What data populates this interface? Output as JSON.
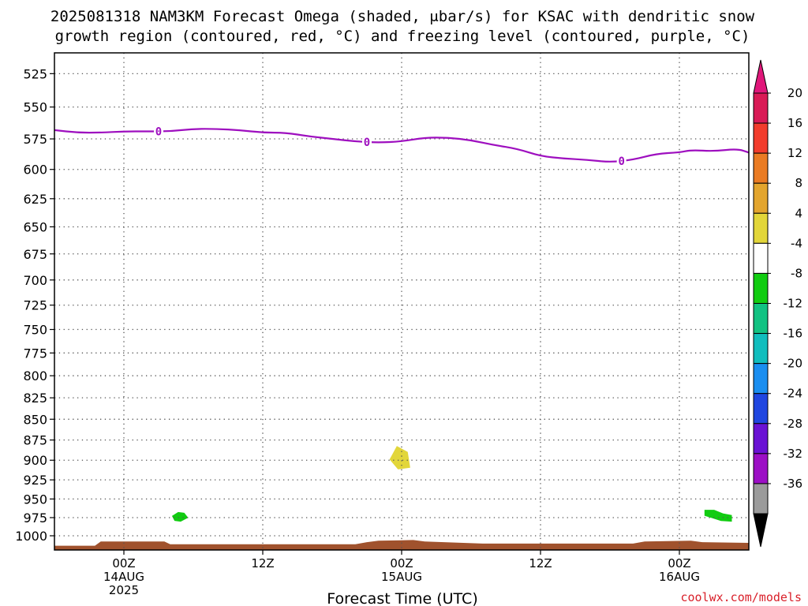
{
  "title": {
    "line1": "2025081318 NAM3KM Forecast Omega (shaded, μbar/s) for KSAC with dendritic snow",
    "line2": "growth region (contoured, red, °C) and freezing level (contoured, purple, °C)"
  },
  "credit": "coolwx.com/models",
  "chart_data": {
    "type": "time-height cross section",
    "xlabel": "Forecast Time (UTC)",
    "ylabel": "",
    "x_range_hours": [
      -6,
      54
    ],
    "y_range_hpa": [
      510,
      1020
    ],
    "y_scale": "pressure (log)",
    "grid": true,
    "y_ticks": [
      525,
      550,
      575,
      600,
      625,
      650,
      675,
      700,
      725,
      750,
      775,
      800,
      825,
      850,
      875,
      900,
      925,
      950,
      975,
      1000
    ],
    "x_ticks": [
      {
        "hour": 0,
        "lines": [
          "00Z",
          "14AUG",
          "2025"
        ]
      },
      {
        "hour": 12,
        "lines": [
          "12Z"
        ]
      },
      {
        "hour": 24,
        "lines": [
          "00Z",
          "15AUG"
        ]
      },
      {
        "hour": 36,
        "lines": [
          "12Z"
        ]
      },
      {
        "hour": 48,
        "lines": [
          "00Z",
          "16AUG"
        ]
      }
    ],
    "freezing_level": {
      "color": "#9e0fbf",
      "label": "0",
      "label_hours": [
        3,
        21,
        43
      ],
      "points": [
        [
          -6,
          568
        ],
        [
          -4,
          570
        ],
        [
          -2,
          570
        ],
        [
          0,
          569
        ],
        [
          2,
          569
        ],
        [
          4,
          569
        ],
        [
          6,
          567
        ],
        [
          8,
          567
        ],
        [
          10,
          568
        ],
        [
          12,
          570
        ],
        [
          14,
          570
        ],
        [
          16,
          573
        ],
        [
          18,
          575
        ],
        [
          20,
          577
        ],
        [
          22,
          578
        ],
        [
          24,
          577
        ],
        [
          26,
          574
        ],
        [
          28,
          574
        ],
        [
          30,
          576
        ],
        [
          32,
          580
        ],
        [
          34,
          583
        ],
        [
          36,
          589
        ],
        [
          38,
          591
        ],
        [
          40,
          592
        ],
        [
          42,
          594
        ],
        [
          44,
          592
        ],
        [
          46,
          587
        ],
        [
          48,
          586
        ],
        [
          49,
          584
        ],
        [
          51,
          585
        ],
        [
          53,
          583
        ],
        [
          54,
          586
        ]
      ]
    },
    "omega_features": [
      {
        "color": "#e2d63a",
        "value_range": "4 to 8",
        "polygon": [
          [
            23.6,
            883
          ],
          [
            24.5,
            890
          ],
          [
            24.7,
            909
          ],
          [
            23.7,
            911
          ],
          [
            23.0,
            899
          ]
        ]
      },
      {
        "color": "#11cc11",
        "value_range": "-4 to -8",
        "polygon": [
          [
            4.2,
            973
          ],
          [
            4.7,
            968
          ],
          [
            5.2,
            969
          ],
          [
            5.5,
            975
          ],
          [
            4.9,
            980
          ],
          [
            4.4,
            979
          ]
        ]
      },
      {
        "color": "#11cc11",
        "value_range": "-4 to -8",
        "polygon": [
          [
            50.2,
            965
          ],
          [
            51.0,
            965
          ],
          [
            51.8,
            970
          ],
          [
            52.5,
            972
          ],
          [
            52.5,
            980
          ],
          [
            51.6,
            979
          ],
          [
            51.0,
            976
          ],
          [
            50.2,
            972
          ]
        ]
      }
    ],
    "terrain": {
      "color": "#a0522d",
      "surface_hpa": [
        [
          -6,
          1014
        ],
        [
          -2,
          1014
        ],
        [
          -2.5,
          1014
        ],
        [
          -2,
          1008
        ],
        [
          2,
          1008
        ],
        [
          3.5,
          1008
        ],
        [
          4,
          1012
        ],
        [
          20,
          1012
        ],
        [
          21,
          1009
        ],
        [
          22,
          1007
        ],
        [
          25,
          1006
        ],
        [
          26,
          1008
        ],
        [
          31,
          1011
        ],
        [
          44,
          1011
        ],
        [
          45,
          1008
        ],
        [
          49,
          1007
        ],
        [
          50,
          1009
        ],
        [
          54,
          1010
        ]
      ]
    },
    "colorbar": {
      "levels": [
        -36,
        -32,
        -28,
        -24,
        -20,
        -16,
        -12,
        -8,
        -4,
        4,
        8,
        12,
        16,
        20
      ],
      "labels": [
        "20",
        "16",
        "12",
        "8",
        "4",
        "-4",
        "-8",
        "-12",
        "-16",
        "-20",
        "-24",
        "-28",
        "-32",
        "-36"
      ],
      "colors_top_to_bottom": [
        "#d91a56",
        "#f23c2c",
        "#ea7b23",
        "#e3a52e",
        "#e2d63a",
        "#ffffff",
        "#11cc11",
        "#12c282",
        "#11bdbd",
        "#1a8ef0",
        "#2046e0",
        "#6a12d4",
        "#9c0fc5",
        "#9b9b9b"
      ],
      "over_color": "#e0177a",
      "under_color": "#000000"
    }
  }
}
